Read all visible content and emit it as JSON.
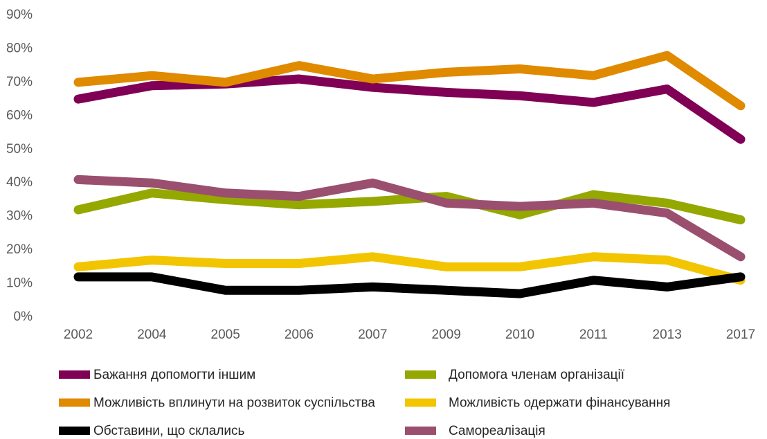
{
  "chart_data": {
    "type": "line",
    "categories": [
      "2002",
      "2004",
      "2005",
      "2006",
      "2007",
      "2009",
      "2010",
      "2011",
      "2013",
      "2017"
    ],
    "series": [
      {
        "name": "Бажання допомогти іншим",
        "color": "#800055",
        "values": [
          65,
          69,
          69.5,
          71,
          68.5,
          67,
          66,
          64,
          68,
          53
        ]
      },
      {
        "name": "Допомога членам організації",
        "color": "#94a800",
        "values": [
          32,
          37,
          35,
          33.5,
          34.5,
          36,
          30.5,
          36.5,
          34,
          29
        ]
      },
      {
        "name": "Можливість вплинути на розвиток суспільства",
        "color": "#e08a00",
        "values": [
          70,
          72,
          70,
          75,
          71,
          73,
          74,
          72,
          78,
          63
        ]
      },
      {
        "name": "Можливість одержати фінансування",
        "color": "#f2c500",
        "values": [
          15,
          17,
          16,
          16,
          18,
          15,
          15,
          18,
          17,
          11
        ]
      },
      {
        "name": "Обставини, що склались",
        "color": "#000000",
        "values": [
          12,
          12,
          8,
          8,
          9,
          8,
          7,
          11,
          9,
          12
        ]
      },
      {
        "name": "Самореалізація",
        "color": "#9b4f6e",
        "values": [
          41,
          40,
          37,
          36,
          40,
          34,
          33,
          34,
          31,
          18
        ]
      }
    ],
    "ylim": [
      0,
      90
    ],
    "yticks": [
      {
        "value": 0,
        "label": "0%"
      },
      {
        "value": 10,
        "label": "10%"
      },
      {
        "value": 20,
        "label": "20%"
      },
      {
        "value": 30,
        "label": "30%"
      },
      {
        "value": 40,
        "label": "40%"
      },
      {
        "value": 50,
        "label": "50%"
      },
      {
        "value": 60,
        "label": "60%"
      },
      {
        "value": 70,
        "label": "70%"
      },
      {
        "value": 80,
        "label": "80%"
      },
      {
        "value": 90,
        "label": "90%"
      }
    ],
    "grid": false
  }
}
